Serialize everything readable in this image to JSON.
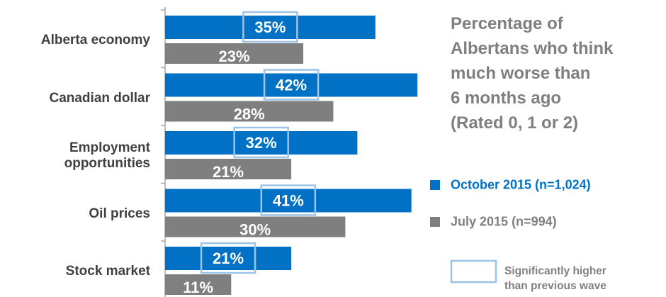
{
  "chart_data": {
    "type": "bar",
    "title": "Percentage of\nAlbertans who think\nmuch worse than\n6 months ago\n(Rated 0, 1 or 2)",
    "categories": [
      "Alberta economy",
      "Canadian dollar",
      "Employment\nopportunities",
      "Oil prices",
      "Stock market"
    ],
    "series": [
      {
        "name": "October 2015 (n=1,024)",
        "color": "#0071c5",
        "values": [
          35,
          42,
          32,
          41,
          21
        ],
        "value_labels": [
          "35%",
          "42%",
          "32%",
          "41%",
          "21%"
        ],
        "significant": [
          true,
          true,
          true,
          true,
          true
        ]
      },
      {
        "name": "July 2015 (n=994)",
        "color": "#7f7f7f",
        "values": [
          23,
          28,
          21,
          30,
          11
        ],
        "value_labels": [
          "23%",
          "28%",
          "21%",
          "30%",
          "11%"
        ]
      }
    ],
    "significance_note": "Significantly higher\nthan previous wave"
  }
}
